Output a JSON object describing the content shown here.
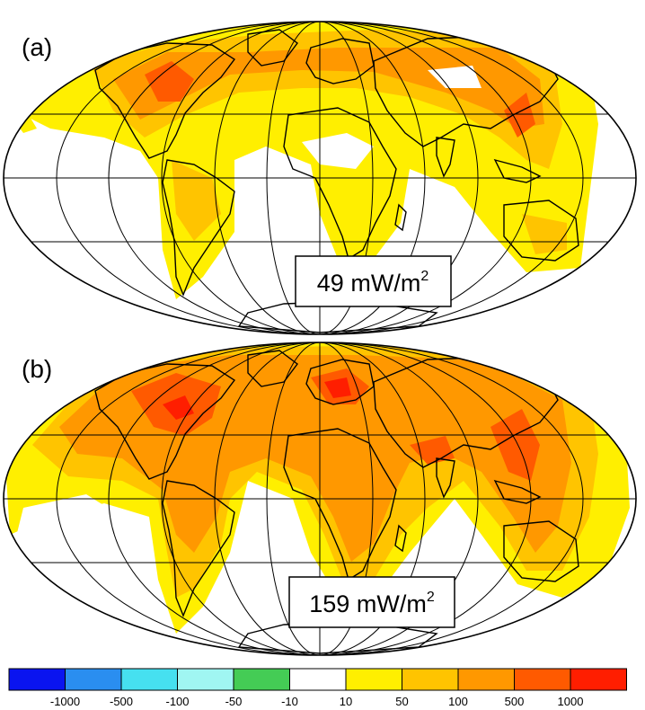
{
  "panels": [
    {
      "label": "(a)",
      "value": "49",
      "unit_base": "mW/m",
      "unit_exp": "2"
    },
    {
      "label": "(b)",
      "value": "159",
      "unit_base": "mW/m",
      "unit_exp": "2"
    }
  ],
  "colorbar": {
    "colors": [
      "#0a14f0",
      "#2a8ef0",
      "#46e0f0",
      "#a0f6f2",
      "#44cc55",
      "#ffffff",
      "#ffef00",
      "#ffc400",
      "#ff9800",
      "#ff5a00",
      "#ff1e00"
    ],
    "ticks": [
      "-1000",
      "-500",
      "-100",
      "-50",
      "-10",
      "10",
      "50",
      "100",
      "500",
      "1000"
    ]
  }
}
